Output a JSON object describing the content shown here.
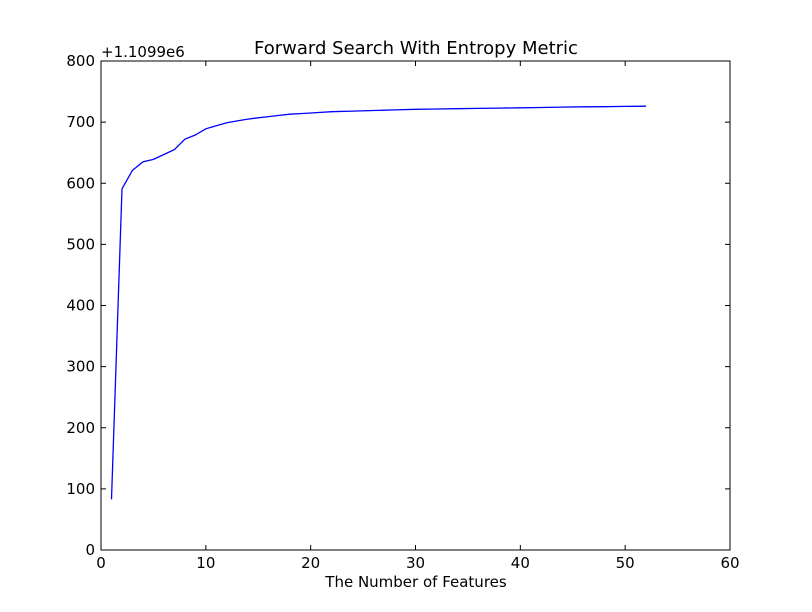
{
  "chart_data": {
    "type": "line",
    "title": "Forward Search With Entropy Metric",
    "xlabel": "The Number of Features",
    "ylabel": "",
    "y_offset_label": "+1.1099e6",
    "xlim": [
      0,
      60
    ],
    "ylim": [
      0,
      800
    ],
    "xticks": [
      0,
      10,
      20,
      30,
      40,
      50,
      60
    ],
    "yticks": [
      0,
      100,
      200,
      300,
      400,
      500,
      600,
      700,
      800
    ],
    "grid": false,
    "line_color": "#0000ff",
    "series": [
      {
        "x": [
          1,
          2,
          3,
          4,
          5,
          6,
          7,
          8,
          9,
          10,
          11,
          12,
          13,
          14,
          15,
          16,
          17,
          18,
          19,
          20,
          22,
          24,
          26,
          28,
          30,
          32,
          34,
          36,
          38,
          40,
          42,
          44,
          46,
          48,
          50,
          52
        ],
        "y": [
          83,
          591,
          621,
          635,
          639,
          647,
          655,
          672,
          679,
          689,
          694,
          699,
          702,
          705,
          707,
          709,
          711,
          713,
          714,
          715,
          717,
          718,
          719,
          720,
          721,
          721.5,
          722,
          722.5,
          723,
          723.5,
          724,
          724.5,
          725,
          725.3,
          725.7,
          726
        ]
      }
    ]
  }
}
